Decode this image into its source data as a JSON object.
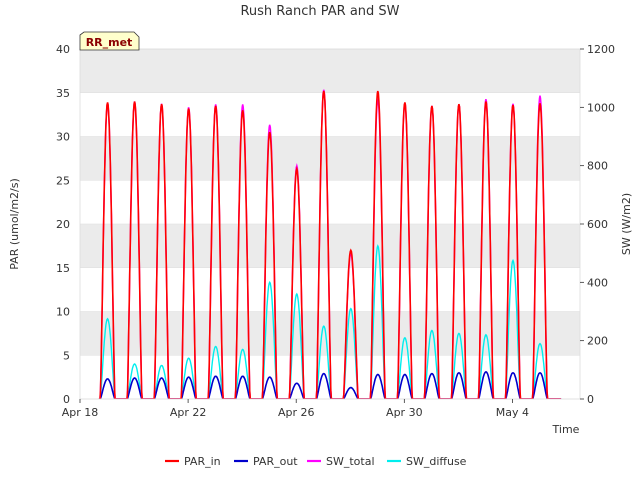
{
  "chart_data": {
    "type": "line",
    "title": "Rush Ranch PAR and SW",
    "badge": "RR_met",
    "xlabel": "Time",
    "ylabel_left": "PAR (umol/m2/s)",
    "ylabel_right": "SW (W/m2)",
    "x_start_day": 0,
    "x_end_day": 18.5,
    "x_ticks": [
      {
        "day": 0,
        "label": "Apr 18"
      },
      {
        "day": 4,
        "label": "Apr 22"
      },
      {
        "day": 8,
        "label": "Apr 26"
      },
      {
        "day": 12,
        "label": "Apr 30"
      },
      {
        "day": 16,
        "label": "May 4"
      }
    ],
    "ylim_left": [
      0,
      40
    ],
    "yticks_left": [
      0,
      5,
      10,
      15,
      20,
      25,
      30,
      35,
      40
    ],
    "ylim_right": [
      0,
      1200
    ],
    "yticks_right": [
      0,
      200,
      400,
      600,
      800,
      1000,
      1200
    ],
    "colors": {
      "PAR_in": "#ff0000",
      "PAR_out": "#0000cc",
      "SW_total": "#ff00ff",
      "SW_diffuse": "#00eeee",
      "band": "#ebebeb"
    },
    "series": [
      {
        "name": "PAR_in",
        "axis": "left",
        "daily_peak": [
          33.9,
          34.0,
          33.7,
          33.2,
          33.5,
          33.0,
          30.5,
          26.3,
          35.2,
          17.0,
          35.2,
          33.9,
          33.5,
          33.7,
          34.0,
          33.6,
          33.8
        ]
      },
      {
        "name": "PAR_out",
        "axis": "left",
        "daily_peak": [
          2.3,
          2.4,
          2.4,
          2.5,
          2.6,
          2.6,
          2.5,
          1.8,
          2.9,
          1.3,
          2.8,
          2.8,
          2.9,
          3.0,
          3.1,
          3.0,
          3.0
        ]
      },
      {
        "name": "SW_total",
        "axis": "right",
        "daily_peak": [
          1015,
          1020,
          1012,
          1000,
          1010,
          1010,
          940,
          800,
          1060,
          500,
          1030,
          1015,
          1005,
          1010,
          1028,
          1012,
          1040
        ]
      },
      {
        "name": "SW_diffuse",
        "axis": "right",
        "daily_peak": [
          275,
          120,
          115,
          140,
          180,
          170,
          400,
          360,
          250,
          310,
          525,
          210,
          235,
          225,
          220,
          475,
          190
        ]
      }
    ],
    "legend": [
      "PAR_in",
      "PAR_out",
      "SW_total",
      "SW_diffuse"
    ]
  }
}
